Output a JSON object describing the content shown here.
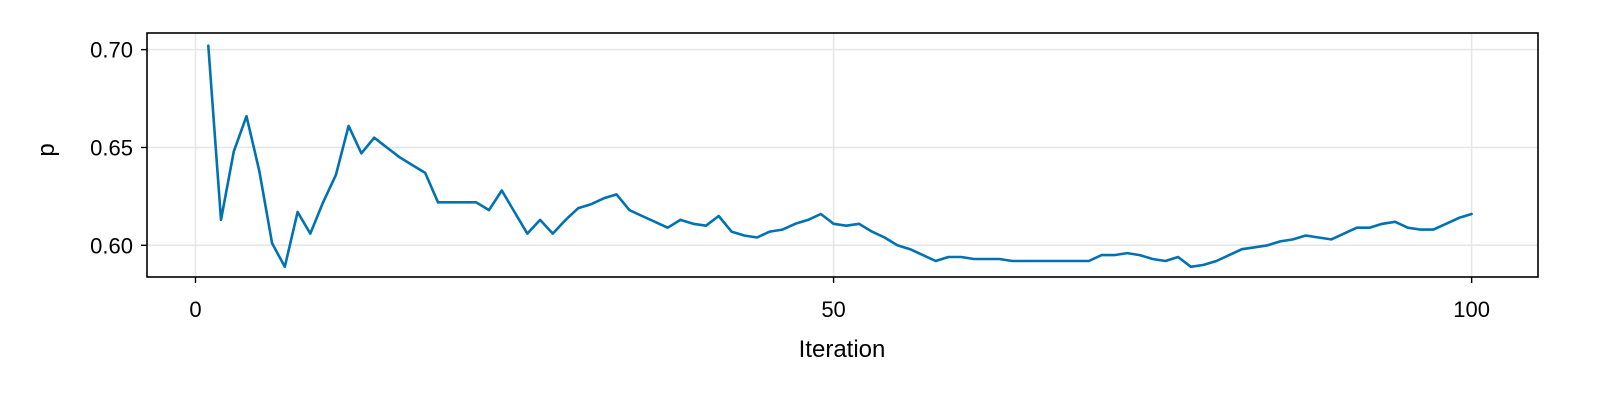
{
  "chart_data": {
    "type": "line",
    "title": "",
    "xlabel": "Iteration",
    "ylabel": "p",
    "xlim": [
      -3.8,
      105.2
    ],
    "ylim": [
      0.5838,
      0.7085
    ],
    "xticks": [
      0,
      50,
      100
    ],
    "xtick_labels": [
      "0",
      "50",
      "100"
    ],
    "yticks": [
      0.6,
      0.65,
      0.7
    ],
    "ytick_labels": [
      "0.60",
      "0.65",
      "0.70"
    ],
    "grid": true,
    "series": [
      {
        "color": "#0072b2",
        "x": [
          1,
          2,
          3,
          4,
          5,
          6,
          7,
          8,
          9,
          10,
          11,
          12,
          13,
          14,
          15,
          16,
          17,
          18,
          19,
          20,
          21,
          22,
          23,
          24,
          25,
          26,
          27,
          28,
          29,
          30,
          31,
          32,
          33,
          34,
          35,
          36,
          37,
          38,
          39,
          40,
          41,
          42,
          43,
          44,
          45,
          46,
          47,
          48,
          49,
          50,
          51,
          52,
          53,
          54,
          55,
          56,
          57,
          58,
          59,
          60,
          61,
          62,
          63,
          64,
          65,
          66,
          67,
          68,
          69,
          70,
          71,
          72,
          73,
          74,
          75,
          76,
          77,
          78,
          79,
          80,
          81,
          82,
          83,
          84,
          85,
          86,
          87,
          88,
          89,
          90,
          91,
          92,
          93,
          94,
          95,
          96,
          97,
          98,
          99,
          100
        ],
        "y": [
          0.702,
          0.613,
          0.648,
          0.666,
          0.638,
          0.601,
          0.589,
          0.617,
          0.606,
          0.622,
          0.636,
          0.661,
          0.647,
          0.655,
          0.65,
          0.645,
          0.641,
          0.637,
          0.622,
          0.622,
          0.622,
          0.622,
          0.618,
          0.628,
          0.617,
          0.606,
          0.613,
          0.606,
          0.613,
          0.619,
          0.621,
          0.624,
          0.626,
          0.618,
          0.615,
          0.612,
          0.609,
          0.613,
          0.611,
          0.61,
          0.615,
          0.607,
          0.605,
          0.604,
          0.607,
          0.608,
          0.611,
          0.613,
          0.616,
          0.611,
          0.61,
          0.611,
          0.607,
          0.604,
          0.6,
          0.598,
          0.595,
          0.592,
          0.594,
          0.594,
          0.593,
          0.593,
          0.593,
          0.592,
          0.592,
          0.592,
          0.592,
          0.592,
          0.592,
          0.592,
          0.595,
          0.595,
          0.596,
          0.595,
          0.593,
          0.592,
          0.594,
          0.589,
          0.59,
          0.592,
          0.595,
          0.598,
          0.599,
          0.6,
          0.602,
          0.603,
          0.605,
          0.604,
          0.603,
          0.606,
          0.609,
          0.609,
          0.611,
          0.612,
          0.609,
          0.608,
          0.608,
          0.611,
          0.614,
          0.616
        ]
      }
    ]
  }
}
